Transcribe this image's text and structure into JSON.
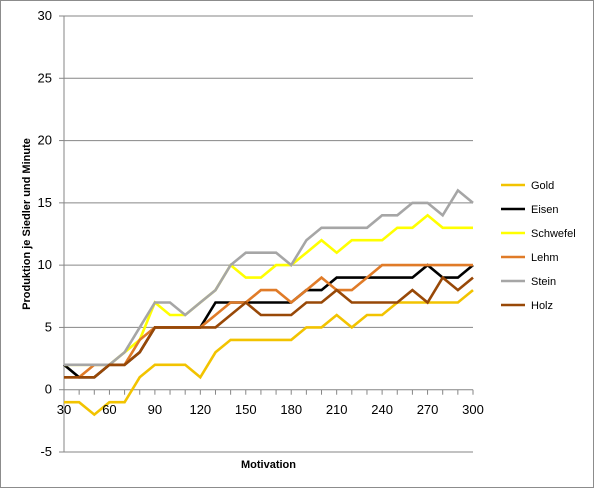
{
  "chart_data": {
    "type": "line",
    "title": "",
    "xlabel": "Motivation",
    "ylabel": "Produktion je Siedler und Minute",
    "x": [
      30,
      40,
      50,
      60,
      70,
      80,
      90,
      100,
      110,
      120,
      130,
      140,
      150,
      160,
      170,
      180,
      190,
      200,
      210,
      220,
      230,
      240,
      250,
      260,
      270,
      280,
      290,
      300
    ],
    "xlim": [
      30,
      300
    ],
    "ylim": [
      -5,
      30
    ],
    "x_ticks": [
      30,
      60,
      90,
      120,
      150,
      180,
      210,
      240,
      270,
      300
    ],
    "y_ticks": [
      -5,
      0,
      5,
      10,
      15,
      20,
      25,
      30
    ],
    "grid": "horizontal",
    "legend_position": "right",
    "series": [
      {
        "name": "Gold",
        "color": "#f2c300",
        "values": [
          -1,
          -1,
          -2,
          -1,
          -1,
          1,
          2,
          2,
          2,
          1,
          3,
          4,
          4,
          4,
          4,
          4,
          5,
          5,
          6,
          5,
          6,
          6,
          7,
          7,
          7,
          7,
          7,
          8
        ]
      },
      {
        "name": "Eisen",
        "color": "#000000",
        "values": [
          2,
          1,
          1,
          2,
          2,
          3,
          5,
          5,
          5,
          5,
          7,
          7,
          7,
          7,
          7,
          7,
          8,
          8,
          9,
          9,
          9,
          9,
          9,
          9,
          10,
          9,
          9,
          10
        ]
      },
      {
        "name": "Schwefel",
        "color": "#ffff00",
        "values": [
          2,
          2,
          2,
          2,
          3,
          4,
          7,
          6,
          6,
          7,
          8,
          10,
          9,
          9,
          10,
          10,
          11,
          12,
          11,
          12,
          12,
          12,
          13,
          13,
          14,
          13,
          13,
          13
        ]
      },
      {
        "name": "Lehm",
        "color": "#e07b28",
        "values": [
          1,
          1,
          2,
          2,
          2,
          4,
          5,
          5,
          5,
          5,
          6,
          7,
          7,
          8,
          8,
          7,
          8,
          9,
          8,
          8,
          9,
          10,
          10,
          10,
          10,
          10,
          10,
          10
        ]
      },
      {
        "name": "Stein",
        "color": "#a6a6a6",
        "values": [
          2,
          2,
          2,
          2,
          3,
          5,
          7,
          7,
          6,
          7,
          8,
          10,
          11,
          11,
          11,
          10,
          12,
          13,
          13,
          13,
          13,
          14,
          14,
          15,
          15,
          14,
          16,
          15
        ]
      },
      {
        "name": "Holz",
        "color": "#984807",
        "values": [
          1,
          1,
          1,
          2,
          2,
          3,
          5,
          5,
          5,
          5,
          5,
          6,
          7,
          6,
          6,
          6,
          7,
          7,
          8,
          7,
          7,
          7,
          7,
          8,
          7,
          9,
          8,
          9
        ]
      }
    ]
  }
}
